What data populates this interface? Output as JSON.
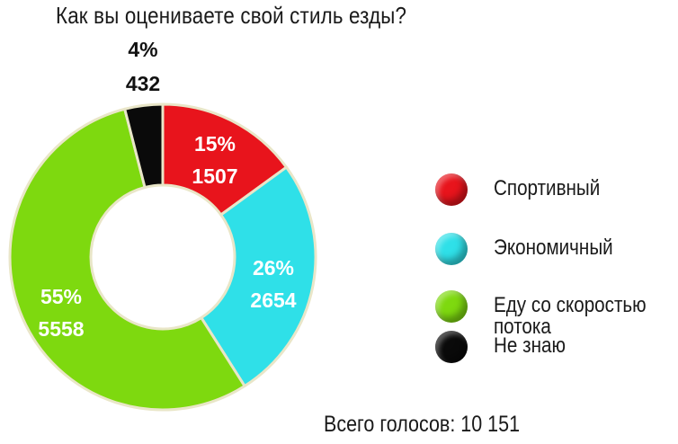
{
  "title": "Как вы оцениваете свой стиль езды?",
  "total_votes": "Всего голосов: 10 151",
  "chart_data": {
    "type": "pie",
    "title": "Как вы оцениваете свой стиль езды?",
    "slices": [
      {
        "label": "Спортивный",
        "percent": 15,
        "percent_label": "15%",
        "votes": 1507,
        "votes_label": "1507",
        "color": "#e8141c",
        "label_color": "#ffffff"
      },
      {
        "label": "Экономичный",
        "percent": 26,
        "percent_label": "26%",
        "votes": 2654,
        "votes_label": "2654",
        "color": "#2fe0e8",
        "label_color": "#ffffff"
      },
      {
        "label": "Еду со скоростью потока",
        "percent": 55,
        "percent_label": "55%",
        "votes": 5558,
        "votes_label": "5558",
        "color": "#7ed90f",
        "label_color": "#ffffff"
      },
      {
        "label": "Не знаю",
        "percent": 4,
        "percent_label": "4%",
        "votes": 432,
        "votes_label": "432",
        "color": "#0a0a0a",
        "label_color": "#111111"
      }
    ],
    "legend_position": "right",
    "total_votes": 10151
  },
  "legend": [
    {
      "label_lines": [
        "Спортивный"
      ],
      "color": "#e8141c"
    },
    {
      "label_lines": [
        "Экономичный"
      ],
      "color": "#2fe0e8"
    },
    {
      "label_lines": [
        "Еду со скоростью",
        "потока"
      ],
      "color": "#7ed90f"
    },
    {
      "label_lines": [
        "Не знаю"
      ],
      "color": "#0a0a0a"
    }
  ]
}
